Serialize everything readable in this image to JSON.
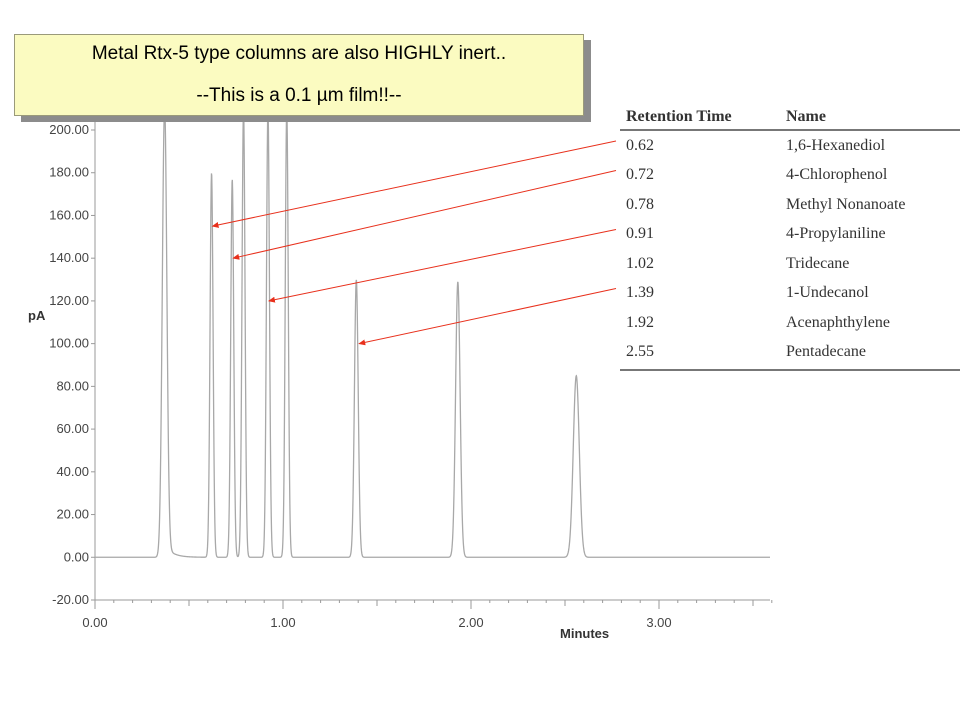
{
  "callout": {
    "line1": "Metal Rtx-5 type columns are also HIGHLY inert..",
    "line2": "--This is a 0.1 µm film!!--"
  },
  "table": {
    "headers": [
      "Retention Time",
      "Name"
    ],
    "rows": [
      {
        "time": "0.62",
        "name": "1,6-Hexanediol"
      },
      {
        "time": "0.72",
        "name": "4-Chlorophenol"
      },
      {
        "time": "0.78",
        "name": "Methyl Nonanoate"
      },
      {
        "time": "0.91",
        "name": "4-Propylaniline"
      },
      {
        "time": "1.02",
        "name": "Tridecane"
      },
      {
        "time": "1.39",
        "name": "1-Undecanol"
      },
      {
        "time": "1.92",
        "name": "Acenaphthylene"
      },
      {
        "time": "2.55",
        "name": "Pentadecane"
      }
    ]
  },
  "chart_data": {
    "type": "line",
    "title": "",
    "xlabel": "Minutes",
    "ylabel": "pA",
    "xlim": [
      0.0,
      3.6
    ],
    "ylim": [
      -20.0,
      210.0
    ],
    "x_ticks": [
      "0.00",
      "1.00",
      "2.00",
      "3.00"
    ],
    "y_ticks": [
      "-20.00",
      "0.00",
      "20.00",
      "40.00",
      "60.00",
      "80.00",
      "100.00",
      "120.00",
      "140.00",
      "160.00",
      "180.00",
      "200.00"
    ],
    "grid": false,
    "line_color": "#a8a8a8",
    "arrow_color": "#e8301c",
    "series": [
      {
        "peaks": [
          {
            "time": 0.37,
            "height": 210,
            "width": 0.012,
            "tail": true
          },
          {
            "time": 0.62,
            "height": 180,
            "width": 0.008
          },
          {
            "time": 0.73,
            "height": 177,
            "width": 0.008
          },
          {
            "time": 0.79,
            "height": 210,
            "width": 0.008
          },
          {
            "time": 0.92,
            "height": 210,
            "width": 0.008
          },
          {
            "time": 1.02,
            "height": 210,
            "width": 0.008
          },
          {
            "time": 1.39,
            "height": 130,
            "width": 0.01
          },
          {
            "time": 1.93,
            "height": 129,
            "width": 0.012
          },
          {
            "time": 2.56,
            "height": 85,
            "width": 0.016
          }
        ]
      }
    ],
    "arrows": [
      {
        "row": 0,
        "target_time": 0.62,
        "target_value": 155
      },
      {
        "row": 1,
        "target_time": 0.73,
        "target_value": 140
      },
      {
        "row": 3,
        "target_time": 0.92,
        "target_value": 120
      },
      {
        "row": 5,
        "target_time": 1.4,
        "target_value": 100
      }
    ]
  }
}
